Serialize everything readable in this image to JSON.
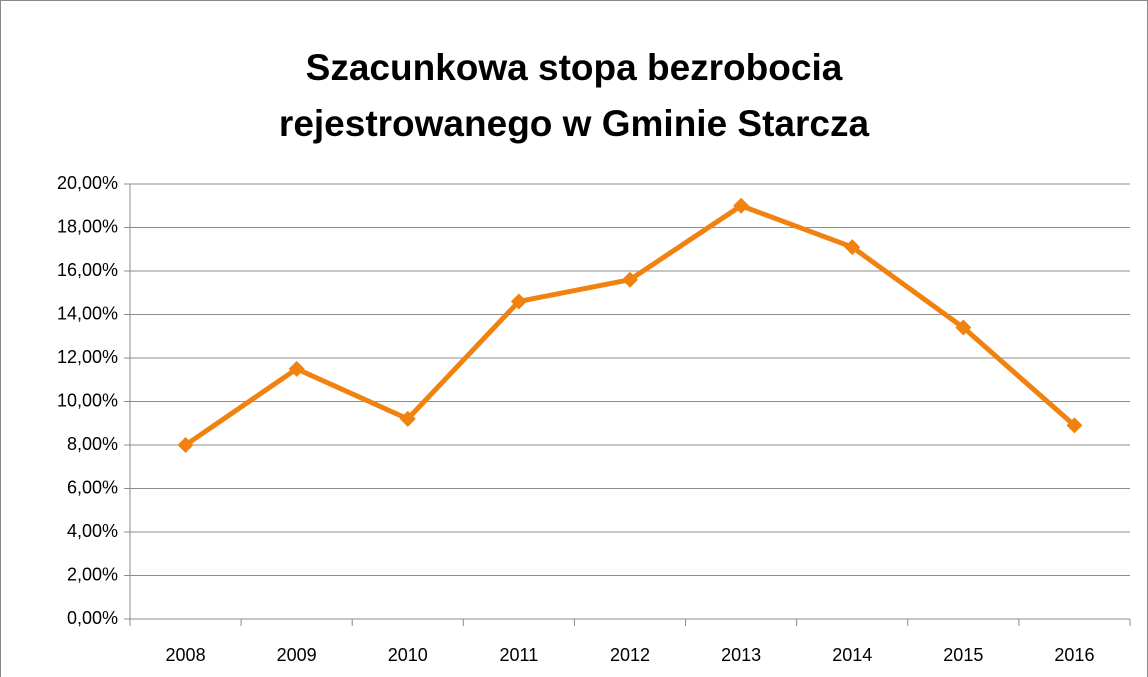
{
  "chart_data": {
    "type": "line",
    "title": "Szacunkowa stopa bezrobocia rejestrowanego w Gminie Starcza",
    "categories": [
      "2008",
      "2009",
      "2010",
      "2011",
      "2012",
      "2013",
      "2014",
      "2015",
      "2016"
    ],
    "series": [
      {
        "name": "Szacunkowa stopa bezrobocia",
        "color": "#f0820f",
        "values": [
          8.0,
          11.5,
          9.2,
          14.6,
          15.6,
          19.0,
          17.1,
          13.4,
          8.9
        ]
      }
    ],
    "ylim": [
      0,
      20
    ],
    "yticks": [
      {
        "value": 0,
        "label": "0,00%"
      },
      {
        "value": 2,
        "label": "2,00%"
      },
      {
        "value": 4,
        "label": "4,00%"
      },
      {
        "value": 6,
        "label": "6,00%"
      },
      {
        "value": 8,
        "label": "8,00%"
      },
      {
        "value": 10,
        "label": "10,00%"
      },
      {
        "value": 12,
        "label": "12,00%"
      },
      {
        "value": 14,
        "label": "14,00%"
      },
      {
        "value": 16,
        "label": "16,00%"
      },
      {
        "value": 18,
        "label": "18,00%"
      },
      {
        "value": 20,
        "label": "20,00%"
      }
    ],
    "grid": true
  }
}
